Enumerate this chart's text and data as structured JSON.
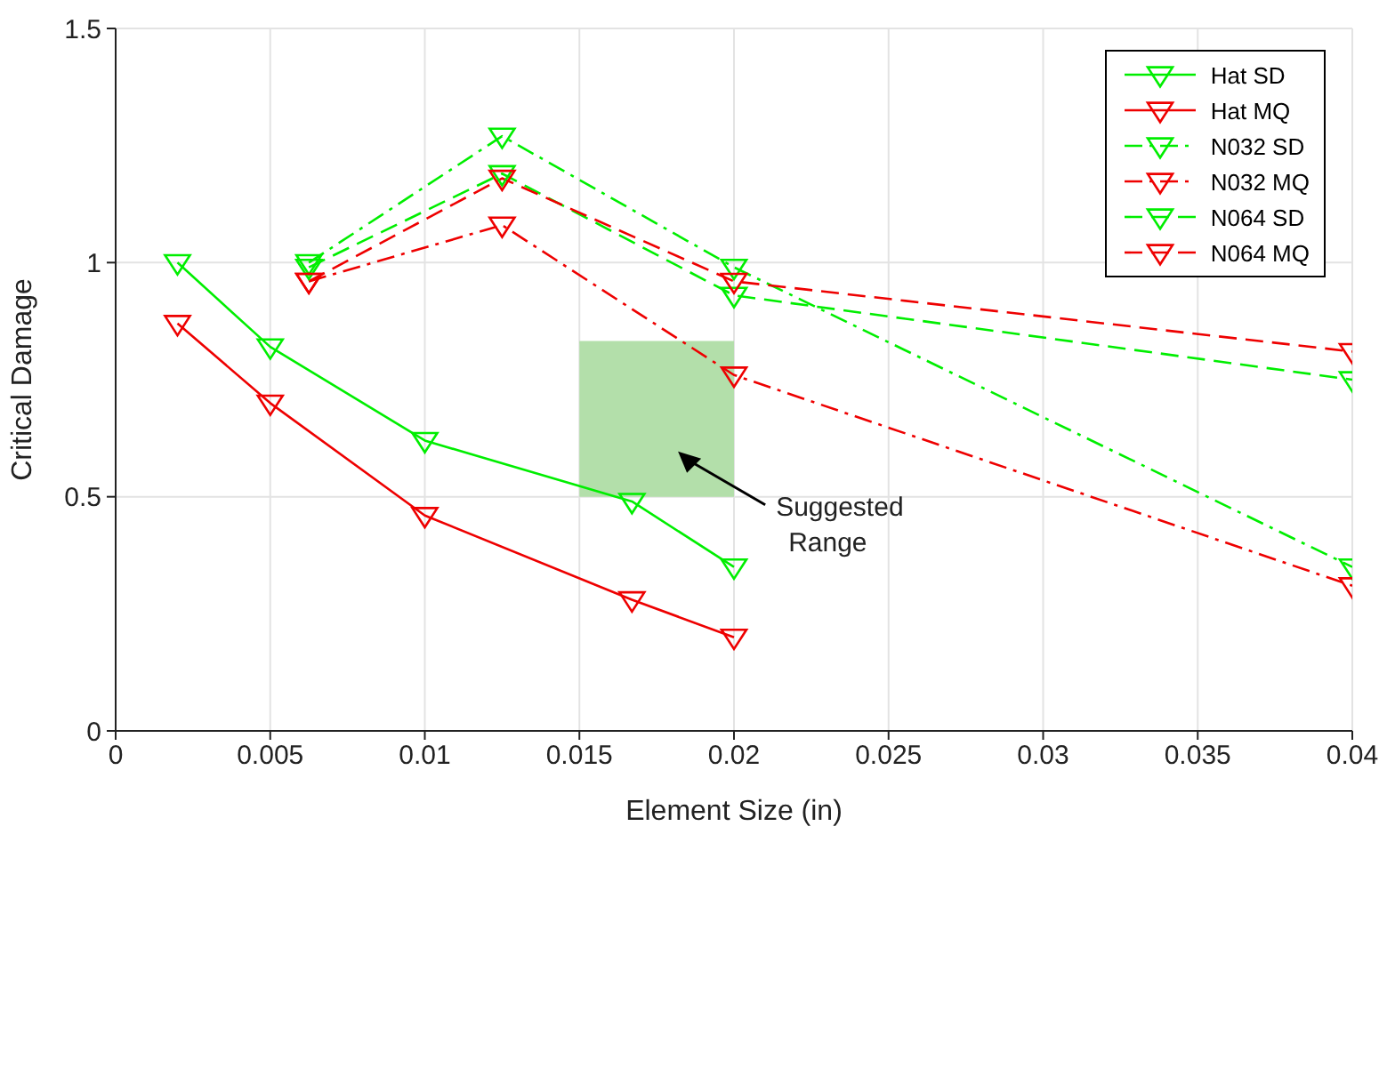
{
  "chart_data": {
    "type": "line",
    "xlabel": "Element Size (in)",
    "ylabel": "Critical Damage",
    "xlim": [
      0,
      0.04
    ],
    "xticks": [
      0,
      0.005,
      0.01,
      0.015,
      0.02,
      0.025,
      0.03,
      0.035,
      0.04
    ],
    "ylim": [
      0,
      1.5
    ],
    "yticks": [
      0,
      0.5,
      1,
      1.5
    ],
    "grid": true,
    "legend": "top right",
    "marker": "triangle",
    "series": [
      {
        "color": "#b3dfaa",
        "marker": "none",
        "x": [
          0.015,
          0.02
        ],
        "values": [
          0.83,
          0.83
        ],
        "lower": [
          0.5,
          0.5
        ],
        "upper": [
          0.83,
          0.83
        ]
      },
      {
        "name": "Hat SD",
        "color": "#00ee00",
        "line_style": "solid",
        "x": [
          0.002,
          0.005,
          0.01,
          0.0167,
          0.02
        ],
        "values": [
          1.0,
          0.82,
          0.62,
          0.49,
          0.35
        ]
      },
      {
        "name": "Hat MQ",
        "color": "#ee0000",
        "line_style": "solid",
        "x": [
          0.002,
          0.005,
          0.01,
          0.0167,
          0.02
        ],
        "values": [
          0.87,
          0.7,
          0.46,
          0.28,
          0.2
        ]
      },
      {
        "name": "N032 SD",
        "color": "#00ee00",
        "line_style": "dashdot",
        "x": [
          0.00625,
          0.0125,
          0.02,
          0.04
        ],
        "values": [
          1.0,
          1.27,
          0.99,
          0.35
        ]
      },
      {
        "name": "N032 MQ",
        "color": "#ee0000",
        "line_style": "dashdot",
        "x": [
          0.00625,
          0.0125,
          0.02,
          0.04
        ],
        "values": [
          0.96,
          1.08,
          0.76,
          0.31
        ]
      },
      {
        "name": "N064 SD",
        "color": "#00ee00",
        "line_style": "dashed",
        "x": [
          0.00625,
          0.0125,
          0.02,
          0.04
        ],
        "values": [
          0.99,
          1.19,
          0.93,
          0.75
        ]
      },
      {
        "name": "N064 MQ",
        "color": "#ee0000",
        "line_style": "dashed",
        "x": [
          0.00625,
          0.0125,
          0.02,
          0.04
        ],
        "values": [
          0.96,
          1.18,
          0.96,
          0.81
        ]
      }
    ],
    "annotations": [
      "Suggested Range"
    ]
  }
}
